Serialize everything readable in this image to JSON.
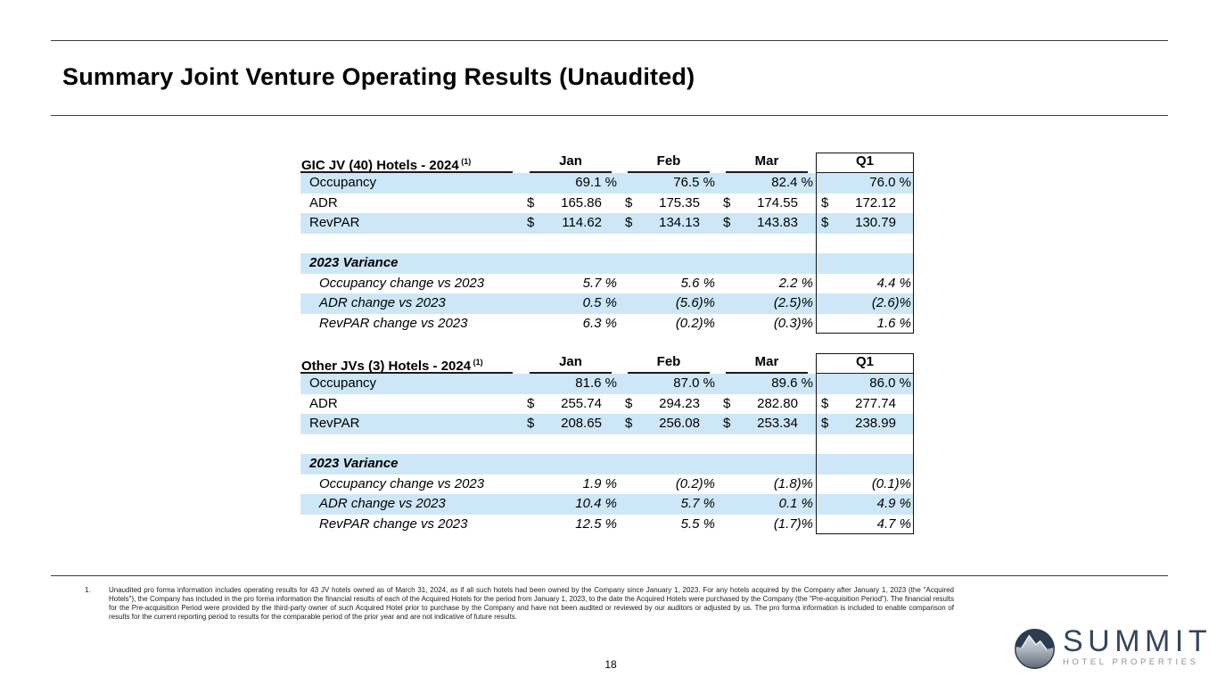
{
  "slide": {
    "title": "Summary Joint Venture Operating Results (Unaudited)",
    "page_number": "18"
  },
  "currency_symbol": "$",
  "colors": {
    "stripe_blue": "#cde7f8",
    "rule_dark": "#3c3c3c",
    "logo_navy": "#35465a",
    "logo_gray": "#8b9097"
  },
  "chart_data": [
    {
      "type": "table",
      "title": "GIC JV (40) Hotels - 2024",
      "footnote_ref": "(1)",
      "columns": [
        "Jan",
        "Feb",
        "Mar",
        "Q1"
      ],
      "rows": [
        {
          "label": "Occupancy",
          "type": "percent",
          "values": [
            "69.1 %",
            "76.5 %",
            "82.4 %",
            "76.0 %"
          ]
        },
        {
          "label": "ADR",
          "type": "currency",
          "values": [
            "165.86",
            "175.35",
            "174.55",
            "172.12"
          ]
        },
        {
          "label": "RevPAR",
          "type": "currency",
          "values": [
            "114.62",
            "134.13",
            "143.83",
            "130.79"
          ]
        },
        {
          "label": "",
          "type": "spacer",
          "values": [
            "",
            "",
            "",
            ""
          ]
        },
        {
          "label": "2023 Variance",
          "type": "section",
          "values": [
            "",
            "",
            "",
            ""
          ]
        },
        {
          "label": "Occupancy change vs 2023",
          "type": "variance",
          "values": [
            "5.7 %",
            "5.6 %",
            "2.2 %",
            "4.4 %"
          ]
        },
        {
          "label": "ADR change vs 2023",
          "type": "variance",
          "values": [
            "0.5 %",
            "(5.6)%",
            "(2.5)%",
            "(2.6)%"
          ]
        },
        {
          "label": "RevPAR change vs 2023",
          "type": "variance",
          "values": [
            "6.3 %",
            "(0.2)%",
            "(0.3)%",
            "1.6 %"
          ]
        }
      ]
    },
    {
      "type": "table",
      "title": "Other JVs (3) Hotels - 2024",
      "footnote_ref": "(1)",
      "columns": [
        "Jan",
        "Feb",
        "Mar",
        "Q1"
      ],
      "rows": [
        {
          "label": "Occupancy",
          "type": "percent",
          "values": [
            "81.6 %",
            "87.0 %",
            "89.6 %",
            "86.0 %"
          ]
        },
        {
          "label": "ADR",
          "type": "currency",
          "values": [
            "255.74",
            "294.23",
            "282.80",
            "277.74"
          ]
        },
        {
          "label": "RevPAR",
          "type": "currency",
          "values": [
            "208.65",
            "256.08",
            "253.34",
            "238.99"
          ]
        },
        {
          "label": "",
          "type": "spacer",
          "values": [
            "",
            "",
            "",
            ""
          ]
        },
        {
          "label": "2023 Variance",
          "type": "section",
          "values": [
            "",
            "",
            "",
            ""
          ]
        },
        {
          "label": "Occupancy change vs 2023",
          "type": "variance",
          "values": [
            "1.9 %",
            "(0.2)%",
            "(1.8)%",
            "(0.1)%"
          ]
        },
        {
          "label": "ADR change vs 2023",
          "type": "variance",
          "values": [
            "10.4 %",
            "5.7 %",
            "0.1 %",
            "4.9 %"
          ]
        },
        {
          "label": "RevPAR change vs 2023",
          "type": "variance",
          "values": [
            "12.5 %",
            "5.5 %",
            "(1.7)%",
            "4.7 %"
          ]
        }
      ]
    }
  ],
  "footnote": {
    "number": "1.",
    "text": "Unaudited pro forma information includes operating results for 43 JV hotels owned as of March 31, 2024, as if all such hotels had been owned by the Company since January 1, 2023. For any hotels acquired by the Company after January 1, 2023 (the \"Acquired Hotels\"), the Company has included in the pro forma information the financial results of each of the Acquired Hotels for the period from January 1, 2023, to the date the Acquired Hotels were purchased by the Company (the \"Pre-acquisition Period\"). The financial results for the Pre-acquisition Period were provided by the third-party owner of such Acquired Hotel prior to purchase by the Company and have not been audited or reviewed by our auditors or adjusted by us. The pro forma information is included to enable comparison of results for the current reporting period to results for the comparable period of the prior year and are not indicative of future results."
  },
  "logo": {
    "name": "SUMMIT",
    "subtitle": "HOTEL PROPERTIES"
  }
}
